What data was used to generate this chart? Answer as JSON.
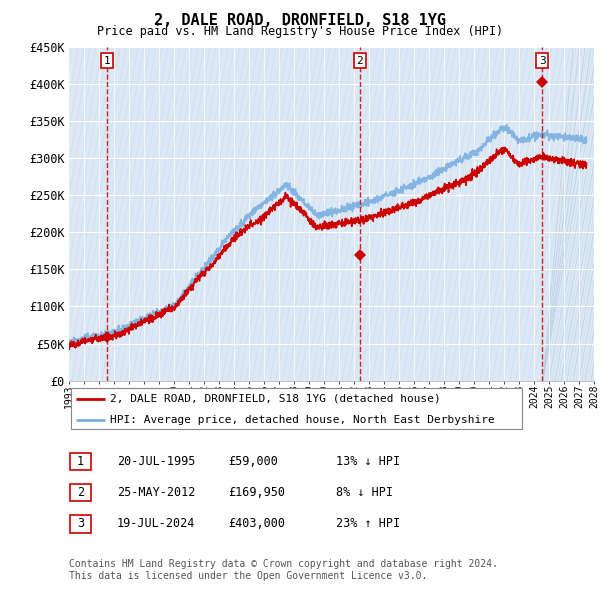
{
  "title": "2, DALE ROAD, DRONFIELD, S18 1YG",
  "subtitle": "Price paid vs. HM Land Registry's House Price Index (HPI)",
  "ylim": [
    0,
    450000
  ],
  "ytick_labels": [
    "£0",
    "£50K",
    "£100K",
    "£150K",
    "£200K",
    "£250K",
    "£300K",
    "£350K",
    "£400K",
    "£450K"
  ],
  "sale_dates": [
    "1995-07-20",
    "2012-05-25",
    "2024-07-19"
  ],
  "sale_prices": [
    59000,
    169950,
    403000
  ],
  "sale_labels": [
    "1",
    "2",
    "3"
  ],
  "legend_address": "2, DALE ROAD, DRONFIELD, S18 1YG (detached house)",
  "legend_hpi": "HPI: Average price, detached house, North East Derbyshire",
  "table_rows": [
    [
      "1",
      "20-JUL-1995",
      "£59,000",
      "13% ↓ HPI"
    ],
    [
      "2",
      "25-MAY-2012",
      "£169,950",
      "8% ↓ HPI"
    ],
    [
      "3",
      "19-JUL-2024",
      "£403,000",
      "23% ↑ HPI"
    ]
  ],
  "footnote": "Contains HM Land Registry data © Crown copyright and database right 2024.\nThis data is licensed under the Open Government Licence v3.0.",
  "line_color_sold": "#cc0000",
  "line_color_hpi": "#7aafe0",
  "bg_color": "#dce8f5",
  "hatch_bg": "#e8eef5",
  "grid_color": "#ffffff",
  "xmin": 1993,
  "xmax": 2028,
  "data_end": 2024.6
}
